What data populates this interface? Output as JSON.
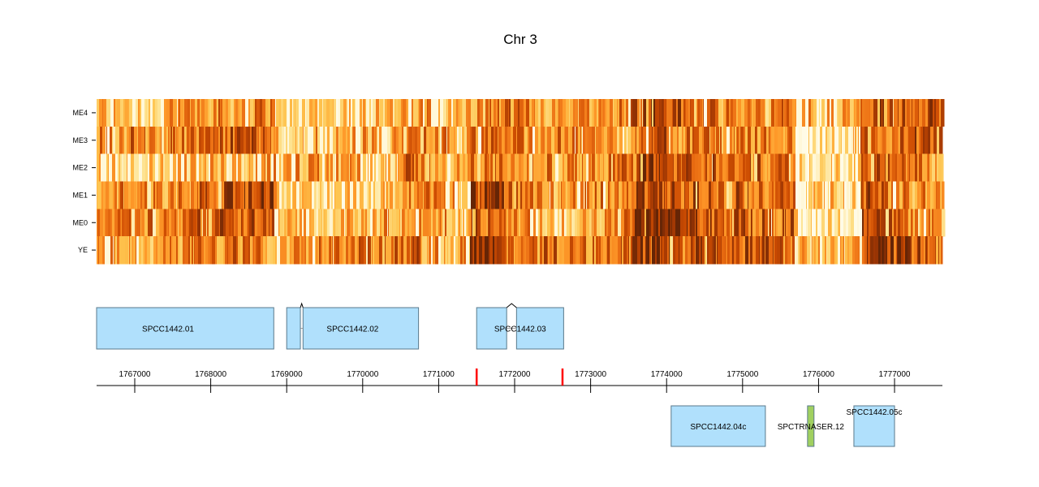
{
  "chart_data": {
    "type": "heatmap",
    "title": "Chr 3",
    "chromosome": "Chr 3",
    "xlim": [
      1766498,
      1777630
    ],
    "x_ticks": [
      1767000,
      1768000,
      1769000,
      1770000,
      1771000,
      1772000,
      1773000,
      1774000,
      1775000,
      1776000,
      1777000
    ],
    "x_tick_labels": [
      "1767000",
      "1768000",
      "1769000",
      "1770000",
      "1771000",
      "1772000",
      "1773000",
      "1774000",
      "1775000",
      "1776000",
      "1777000"
    ],
    "rows": [
      "ME4",
      "ME3",
      "ME2",
      "ME1",
      "ME0",
      "YE"
    ],
    "colormap": [
      "#fffbe6",
      "#fee391",
      "#fec44f",
      "#fe9929",
      "#ec7014",
      "#cc4c02",
      "#993404",
      "#662506"
    ],
    "profile_bins": 52,
    "profiles": {
      "ME4": [
        0.35,
        0.4,
        0.35,
        0.3,
        0.35,
        0.45,
        0.5,
        0.5,
        0.45,
        0.5,
        0.55,
        0.1,
        0.15,
        0.3,
        0.2,
        0.25,
        0.3,
        0.35,
        0.3,
        0.4,
        0.45,
        0.4,
        0.35,
        0.45,
        0.5,
        0.55,
        0.5,
        0.45,
        0.4,
        0.45,
        0.5,
        0.55,
        0.6,
        0.75,
        0.8,
        0.7,
        0.6,
        0.55,
        0.5,
        0.6,
        0.55,
        0.5,
        0.55,
        0.4,
        0.3,
        0.35,
        0.3,
        0.6,
        0.7,
        0.75,
        0.75,
        0.7
      ],
      "ME3": [
        0.5,
        0.5,
        0.55,
        0.5,
        0.5,
        0.55,
        0.6,
        0.6,
        0.65,
        0.7,
        0.6,
        0.25,
        0.3,
        0.45,
        0.3,
        0.35,
        0.4,
        0.35,
        0.35,
        0.55,
        0.6,
        0.5,
        0.3,
        0.5,
        0.6,
        0.55,
        0.5,
        0.55,
        0.5,
        0.5,
        0.45,
        0.4,
        0.45,
        0.6,
        0.65,
        0.6,
        0.55,
        0.5,
        0.45,
        0.5,
        0.55,
        0.5,
        0.55,
        0.05,
        0.1,
        0.15,
        0.2,
        0.55,
        0.6,
        0.6,
        0.7,
        0.6
      ],
      "ME2": [
        0.2,
        0.3,
        0.15,
        0.25,
        0.2,
        0.3,
        0.25,
        0.35,
        0.3,
        0.35,
        0.4,
        0.3,
        0.4,
        0.45,
        0.35,
        0.4,
        0.45,
        0.4,
        0.35,
        0.6,
        0.5,
        0.45,
        0.35,
        0.5,
        0.55,
        0.6,
        0.55,
        0.5,
        0.45,
        0.45,
        0.5,
        0.55,
        0.6,
        0.75,
        0.8,
        0.7,
        0.7,
        0.7,
        0.65,
        0.6,
        0.6,
        0.6,
        0.6,
        0.1,
        0.2,
        0.2,
        0.2,
        0.7,
        0.6,
        0.55,
        0.55,
        0.45
      ],
      "ME1": [
        0.55,
        0.5,
        0.55,
        0.5,
        0.55,
        0.6,
        0.65,
        0.7,
        0.7,
        0.75,
        0.8,
        0.2,
        0.3,
        0.35,
        0.2,
        0.25,
        0.3,
        0.35,
        0.35,
        0.5,
        0.5,
        0.45,
        0.15,
        0.85,
        0.9,
        0.6,
        0.55,
        0.5,
        0.5,
        0.45,
        0.5,
        0.55,
        0.55,
        0.75,
        0.8,
        0.75,
        0.7,
        0.65,
        0.65,
        0.7,
        0.65,
        0.6,
        0.6,
        0.15,
        0.2,
        0.25,
        0.15,
        0.7,
        0.6,
        0.55,
        0.55,
        0.5
      ],
      "ME0": [
        0.6,
        0.55,
        0.6,
        0.55,
        0.55,
        0.6,
        0.65,
        0.7,
        0.75,
        0.7,
        0.75,
        0.25,
        0.3,
        0.3,
        0.25,
        0.3,
        0.35,
        0.4,
        0.35,
        0.45,
        0.5,
        0.45,
        0.2,
        0.65,
        0.6,
        0.5,
        0.45,
        0.4,
        0.3,
        0.35,
        0.3,
        0.4,
        0.6,
        0.9,
        0.9,
        0.85,
        0.8,
        0.7,
        0.7,
        0.7,
        0.65,
        0.6,
        0.65,
        0.15,
        0.2,
        0.25,
        0.2,
        0.7,
        0.65,
        0.55,
        0.55,
        0.5
      ],
      "YE": [
        0.4,
        0.4,
        0.45,
        0.4,
        0.45,
        0.5,
        0.5,
        0.5,
        0.55,
        0.55,
        0.5,
        0.45,
        0.55,
        0.55,
        0.55,
        0.6,
        0.6,
        0.55,
        0.55,
        0.6,
        0.45,
        0.4,
        0.45,
        0.95,
        0.95,
        0.55,
        0.6,
        0.6,
        0.6,
        0.6,
        0.55,
        0.55,
        0.6,
        0.8,
        0.8,
        0.75,
        0.7,
        0.7,
        0.7,
        0.7,
        0.65,
        0.65,
        0.6,
        0.3,
        0.3,
        0.35,
        0.3,
        0.8,
        0.95,
        0.9,
        0.7,
        0.6
      ]
    },
    "markers": [
      1771500,
      1772630
    ],
    "marker_color": "#ff0000",
    "genes": [
      {
        "name": "SPCC1442.01",
        "strand": "+",
        "exons": [
          [
            1766498,
            1768830
          ]
        ],
        "color": "#b0e0fc"
      },
      {
        "name": "SPCC1442.02",
        "strand": "+",
        "exons": [
          [
            1769000,
            1769180
          ],
          [
            1769215,
            1770735
          ]
        ],
        "color": "#b0e0fc"
      },
      {
        "name": "SPCC1442.03",
        "strand": "+",
        "exons": [
          [
            1771500,
            1771895
          ],
          [
            1772025,
            1772645
          ]
        ],
        "color": "#b0e0fc"
      },
      {
        "name": "SPCC1442.04c",
        "strand": "-",
        "exons": [
          [
            1774060,
            1775300
          ]
        ],
        "color": "#b0e0fc"
      },
      {
        "name": "SPCTRNASER.12",
        "strand": "-",
        "exons": [
          [
            1775855,
            1775940
          ]
        ],
        "color": "#a0d060"
      },
      {
        "name": "SPCC1442.05c",
        "strand": "-",
        "exons": [
          [
            1776465,
            1777000
          ]
        ],
        "color": "#b0e0fc",
        "label_above": true
      }
    ]
  }
}
